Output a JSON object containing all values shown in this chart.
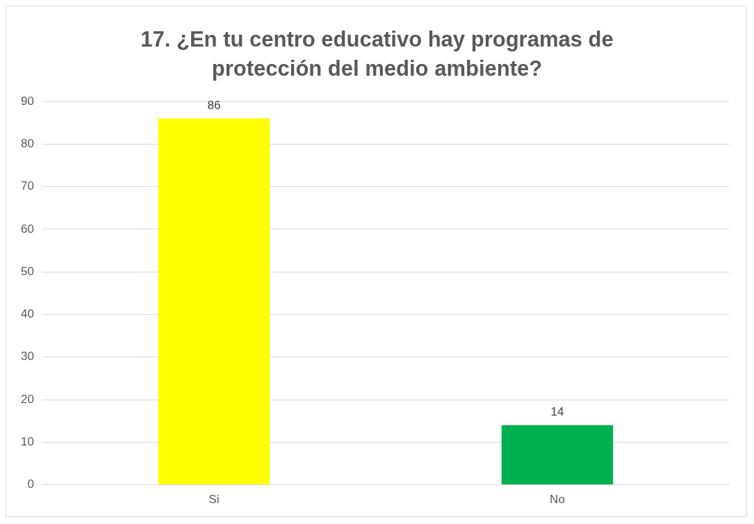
{
  "chart_data": {
    "type": "bar",
    "title": "17. ¿En tu centro educativo hay programas de protección del medio ambiente?",
    "categories": [
      "Si",
      "No"
    ],
    "values": [
      86,
      14
    ],
    "colors": [
      "#ffff00",
      "#00b050"
    ],
    "ylim": [
      0,
      90
    ],
    "yticks": [
      0,
      10,
      20,
      30,
      40,
      50,
      60,
      70,
      80,
      90
    ],
    "grid": "y",
    "data_labels": true,
    "legend": false
  }
}
